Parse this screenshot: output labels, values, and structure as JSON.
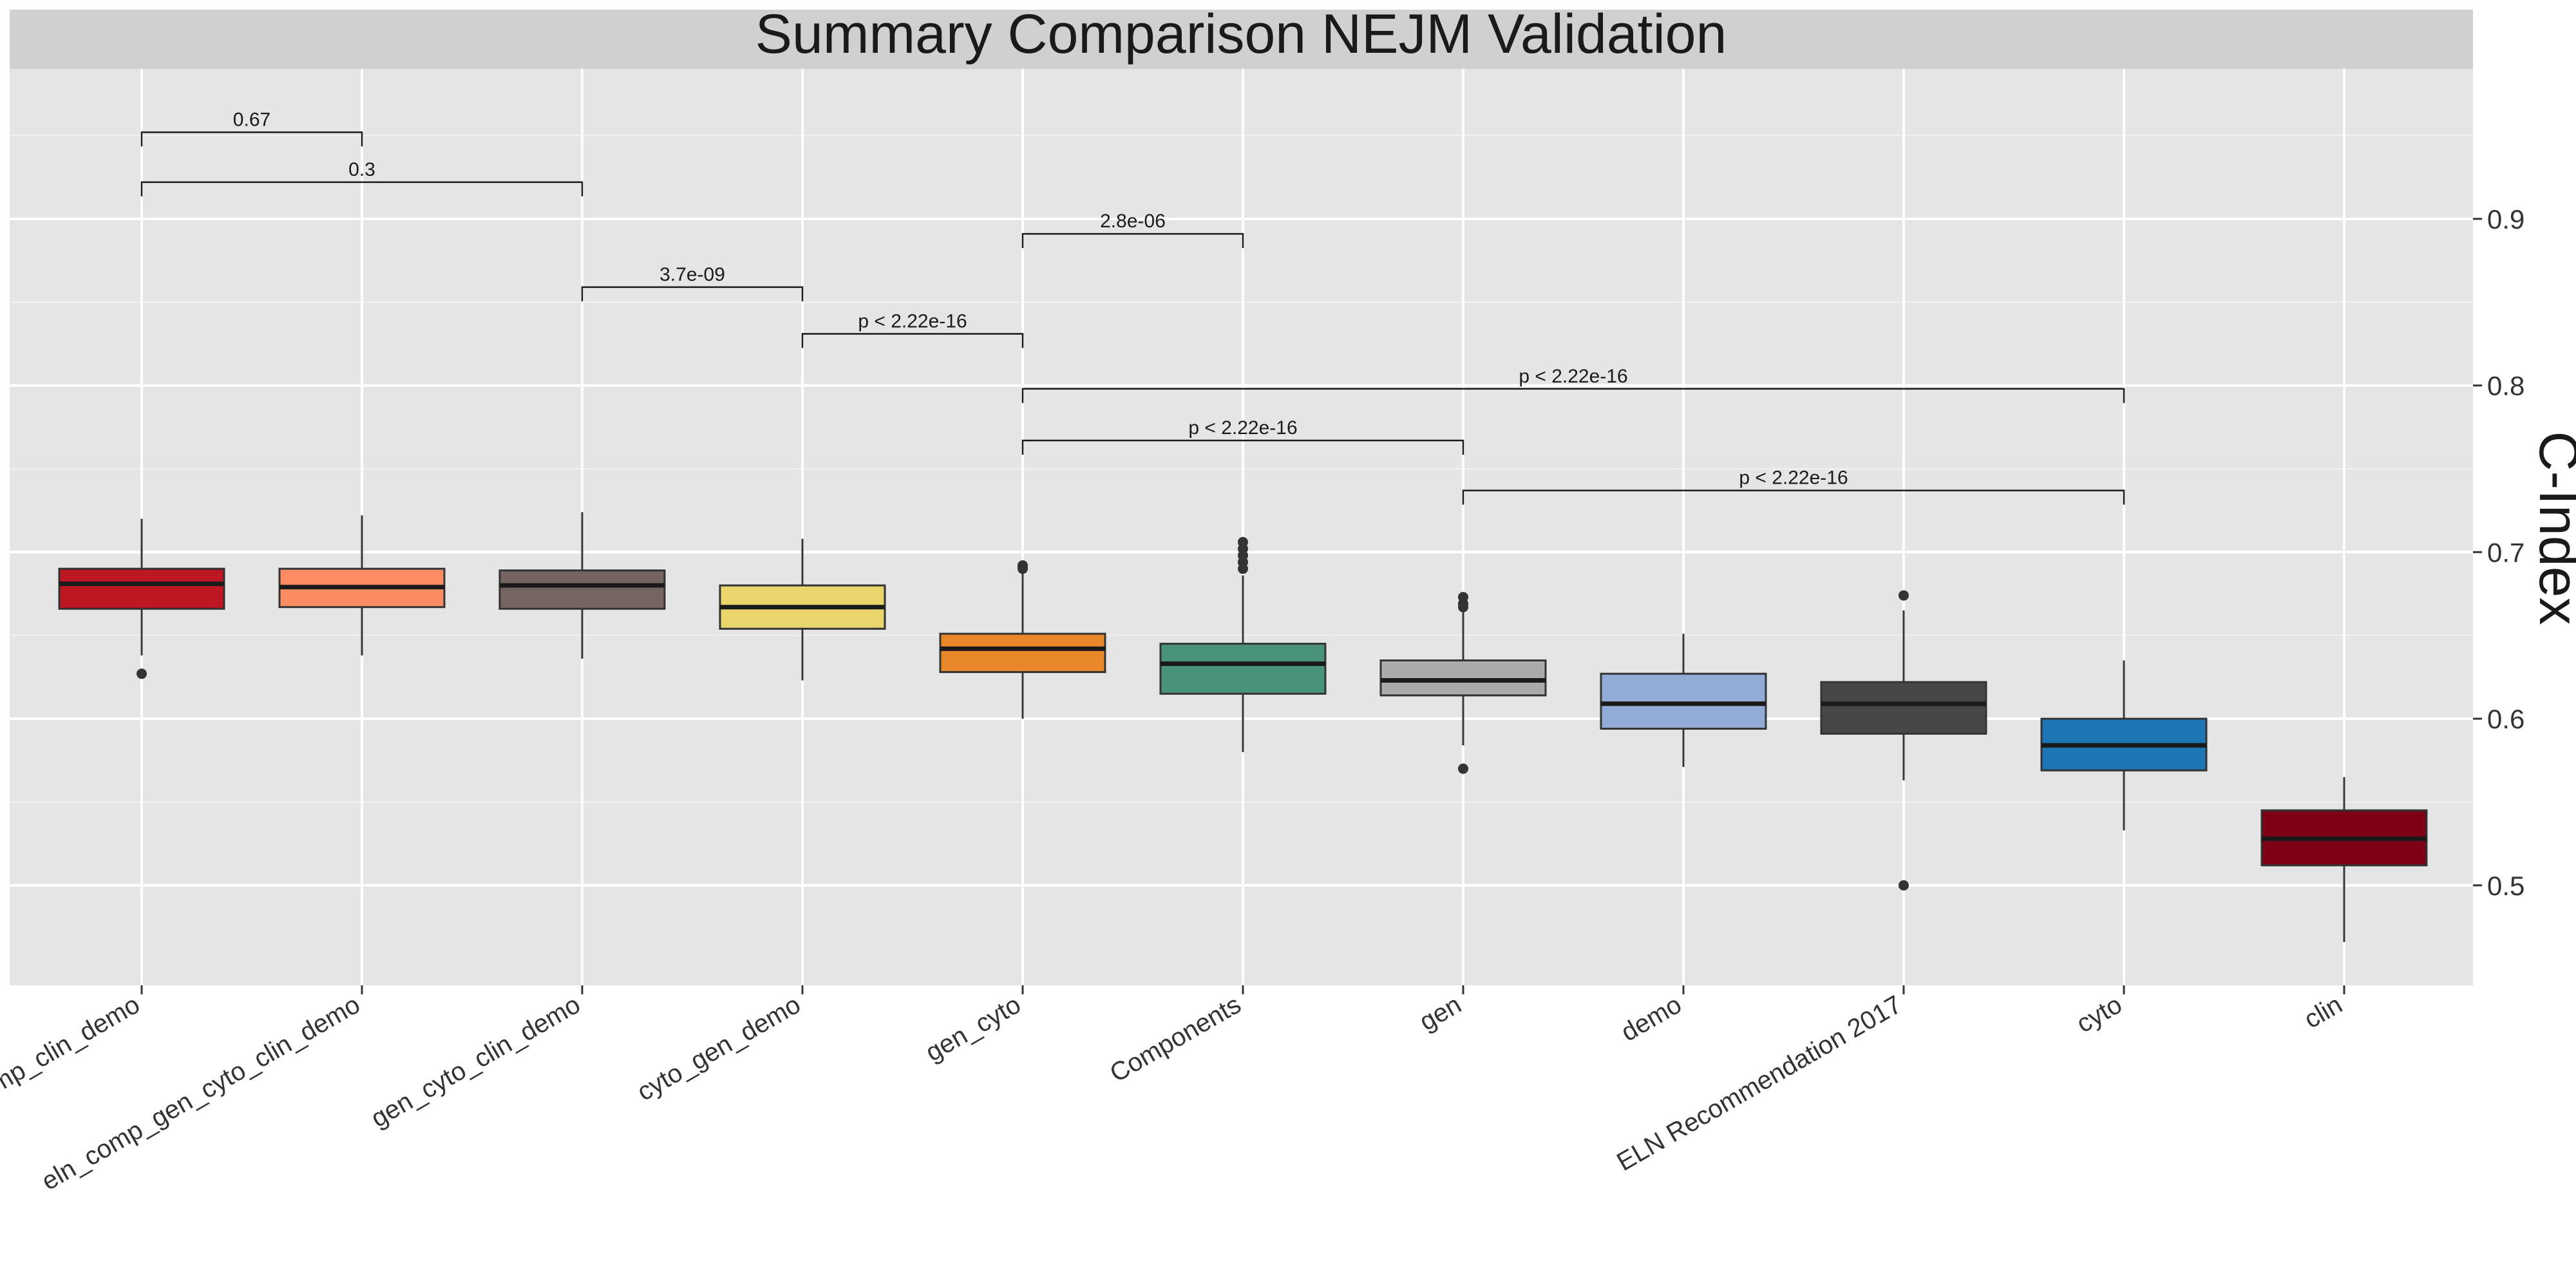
{
  "chart_data": {
    "type": "box",
    "title": "Summary Comparison NEJM Validation",
    "xlabel": "",
    "ylabel": "C-Index",
    "y_axis_side": "right",
    "ylim": [
      0.44,
      0.99
    ],
    "y_ticks": [
      0.5,
      0.6,
      0.7,
      0.8,
      0.9
    ],
    "y_tick_labels": [
      "0.5",
      "0.6",
      "0.7",
      "0.8",
      "0.9"
    ],
    "grid": true,
    "legend": "none",
    "categories": [
      "comp_clin_demo",
      "eln_comp_gen_cyto_clin_demo",
      "gen_cyto_clin_demo",
      "cyto_gen_demo",
      "gen_cyto",
      "Components",
      "gen",
      "demo",
      "ELN Recommendation 2017",
      "cyto",
      "clin"
    ],
    "boxes": [
      {
        "category": "comp_clin_demo",
        "whisker_low": 0.638,
        "q1": 0.666,
        "median": 0.681,
        "q3": 0.69,
        "whisker_high": 0.72,
        "outliers": [
          0.627
        ],
        "color": "#BE1622"
      },
      {
        "category": "eln_comp_gen_cyto_clin_demo",
        "whisker_low": 0.638,
        "q1": 0.667,
        "median": 0.679,
        "q3": 0.69,
        "whisker_high": 0.722,
        "outliers": [],
        "color": "#FC8D62"
      },
      {
        "category": "gen_cyto_clin_demo",
        "whisker_low": 0.636,
        "q1": 0.666,
        "median": 0.68,
        "q3": 0.689,
        "whisker_high": 0.724,
        "outliers": [],
        "color": "#756662"
      },
      {
        "category": "cyto_gen_demo",
        "whisker_low": 0.623,
        "q1": 0.654,
        "median": 0.667,
        "q3": 0.68,
        "whisker_high": 0.708,
        "outliers": [],
        "color": "#E9D56C"
      },
      {
        "category": "gen_cyto",
        "whisker_low": 0.6,
        "q1": 0.628,
        "median": 0.642,
        "q3": 0.651,
        "whisker_high": 0.688,
        "outliers": [
          0.69,
          0.692,
          0.691
        ],
        "color": "#E8882B"
      },
      {
        "category": "Components",
        "whisker_low": 0.58,
        "q1": 0.615,
        "median": 0.633,
        "q3": 0.645,
        "whisker_high": 0.686,
        "outliers": [
          0.69,
          0.694,
          0.698,
          0.702,
          0.706
        ],
        "color": "#49937A"
      },
      {
        "category": "gen",
        "whisker_low": 0.584,
        "q1": 0.614,
        "median": 0.623,
        "q3": 0.635,
        "whisker_high": 0.665,
        "outliers": [
          0.57,
          0.667,
          0.669,
          0.673
        ],
        "color": "#AAAAAA"
      },
      {
        "category": "demo",
        "whisker_low": 0.571,
        "q1": 0.594,
        "median": 0.609,
        "q3": 0.627,
        "whisker_high": 0.651,
        "outliers": [],
        "color": "#92ABD6"
      },
      {
        "category": "ELN Recommendation 2017",
        "whisker_low": 0.563,
        "q1": 0.591,
        "median": 0.609,
        "q3": 0.622,
        "whisker_high": 0.665,
        "outliers": [
          0.5,
          0.674
        ],
        "color": "#474747"
      },
      {
        "category": "cyto",
        "whisker_low": 0.533,
        "q1": 0.569,
        "median": 0.584,
        "q3": 0.6,
        "whisker_high": 0.635,
        "outliers": [],
        "color": "#1D75B4"
      },
      {
        "category": "clin",
        "whisker_low": 0.466,
        "q1": 0.512,
        "median": 0.528,
        "q3": 0.545,
        "whisker_high": 0.565,
        "outliers": [],
        "color": "#7D0017"
      }
    ],
    "comparisons": [
      {
        "from": 0,
        "to": 1,
        "label": "0.67",
        "y": 0.952
      },
      {
        "from": 0,
        "to": 2,
        "label": "0.3",
        "y": 0.922
      },
      {
        "from": 2,
        "to": 3,
        "label": "3.7e-09",
        "y": 0.859
      },
      {
        "from": 4,
        "to": 5,
        "label": "2.8e-06",
        "y": 0.891
      },
      {
        "from": 3,
        "to": 4,
        "label": "p < 2.22e-16",
        "y": 0.831
      },
      {
        "from": 4,
        "to": 9,
        "label": "p < 2.22e-16",
        "y": 0.798
      },
      {
        "from": 4,
        "to": 6,
        "label": "p < 2.22e-16",
        "y": 0.767
      },
      {
        "from": 6,
        "to": 9,
        "label": "p < 2.22e-16",
        "y": 0.737
      }
    ],
    "colors": {
      "panel_bg": "#E5E5E5",
      "title_strip_bg": "#D0D0D0",
      "grid_major": "#FFFFFF",
      "grid_minor": "#F2F2F2",
      "text": "#1A1A1A",
      "axis_text": "#333333"
    }
  }
}
